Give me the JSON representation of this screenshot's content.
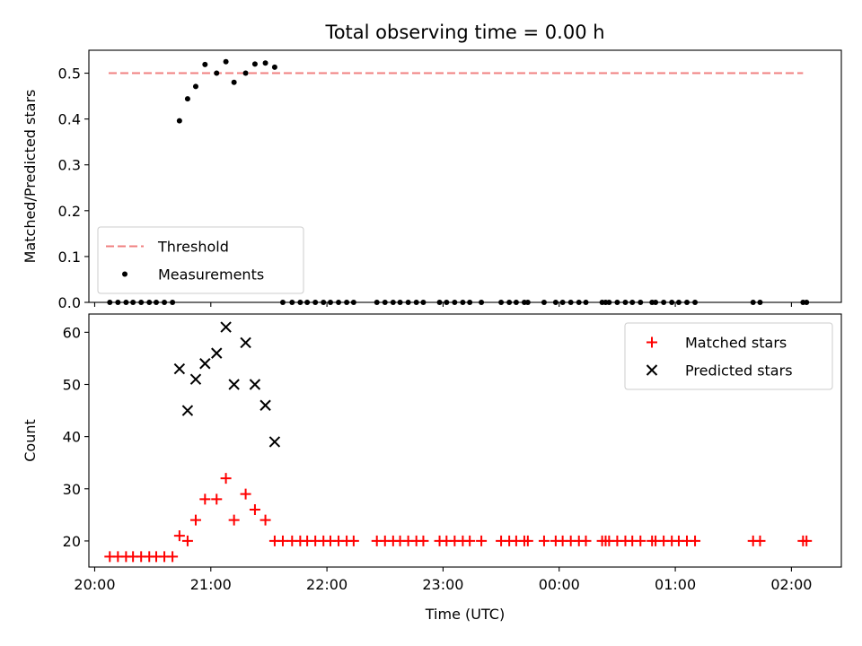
{
  "figure": {
    "title": "Total observing time = 0.00 h"
  },
  "chart_data": [
    {
      "type": "scatter",
      "panel": "top",
      "ylabel": "Matched/Predicted stars",
      "ylim": [
        0,
        0.55
      ],
      "yticks": [
        0.0,
        0.1,
        0.2,
        0.3,
        0.4,
        0.5
      ],
      "ytick_labels": [
        "0.0",
        "0.1",
        "0.2",
        "0.3",
        "0.4",
        "0.5"
      ],
      "xlim_hours": [
        19.95,
        26.43
      ],
      "threshold": {
        "value": 0.5,
        "x_range": [
          20.12,
          26.1
        ],
        "color": "#f08080",
        "style": "dashed"
      },
      "legend": {
        "placement": "lower-left",
        "entries": [
          {
            "label": "Threshold",
            "kind": "dashed-line",
            "color": "#f08080"
          },
          {
            "label": "Measurements",
            "kind": "dot",
            "color": "#000000"
          }
        ]
      },
      "series": [
        {
          "name": "Measurements",
          "marker": "dot",
          "color": "#000000",
          "x": [
            20.13,
            20.2,
            20.27,
            20.33,
            20.4,
            20.47,
            20.53,
            20.6,
            20.67,
            20.73,
            20.8,
            20.87,
            20.95,
            21.05,
            21.13,
            21.2,
            21.3,
            21.38,
            21.47,
            21.55,
            21.62,
            21.7,
            21.77,
            21.83,
            21.9,
            21.97,
            22.03,
            22.1,
            22.17,
            22.23,
            22.43,
            22.5,
            22.57,
            22.63,
            22.7,
            22.77,
            22.83,
            22.97,
            23.03,
            23.1,
            23.17,
            23.23,
            23.33,
            23.5,
            23.57,
            23.63,
            23.7,
            23.73,
            23.87,
            23.97,
            24.03,
            24.1,
            24.17,
            24.23,
            24.37,
            24.4,
            24.43,
            24.5,
            24.57,
            24.63,
            24.7,
            24.8,
            24.83,
            24.9,
            24.97,
            25.03,
            25.1,
            25.17,
            25.67,
            25.73,
            26.1,
            26.13
          ],
          "y": [
            0,
            0,
            0,
            0,
            0,
            0,
            0,
            0,
            0,
            0.396,
            0.444,
            0.471,
            0.519,
            0.5,
            0.525,
            0.48,
            0.5,
            0.52,
            0.522,
            0.513,
            0,
            0,
            0,
            0,
            0,
            0,
            0,
            0,
            0,
            0,
            0,
            0,
            0,
            0,
            0,
            0,
            0,
            0,
            0,
            0,
            0,
            0,
            0,
            0,
            0,
            0,
            0,
            0,
            0,
            0,
            0,
            0,
            0,
            0,
            0,
            0,
            0,
            0,
            0,
            0,
            0,
            0,
            0,
            0,
            0,
            0,
            0,
            0,
            0,
            0,
            0,
            0
          ]
        }
      ]
    },
    {
      "type": "scatter",
      "panel": "bottom",
      "xlabel": "Time (UTC)",
      "ylabel": "Count",
      "ylim": [
        15,
        63.5
      ],
      "yticks": [
        20,
        30,
        40,
        50,
        60
      ],
      "ytick_labels": [
        "20",
        "30",
        "40",
        "50",
        "60"
      ],
      "xlim_hours": [
        19.95,
        26.43
      ],
      "xticks_hours": [
        20,
        21,
        22,
        23,
        24,
        25,
        26
      ],
      "xtick_labels": [
        "20:00",
        "21:00",
        "22:00",
        "23:00",
        "00:00",
        "01:00",
        "02:00"
      ],
      "legend": {
        "placement": "upper-right",
        "entries": [
          {
            "label": "Matched stars",
            "kind": "plus",
            "color": "#ff0000"
          },
          {
            "label": "Predicted stars",
            "kind": "cross",
            "color": "#000000"
          }
        ]
      },
      "series": [
        {
          "name": "Matched stars",
          "marker": "plus",
          "color": "#ff0000",
          "x": [
            20.13,
            20.2,
            20.27,
            20.33,
            20.4,
            20.47,
            20.53,
            20.6,
            20.67,
            20.73,
            20.8,
            20.87,
            20.95,
            21.05,
            21.13,
            21.2,
            21.3,
            21.38,
            21.47,
            21.55,
            21.62,
            21.7,
            21.77,
            21.83,
            21.9,
            21.97,
            22.03,
            22.1,
            22.17,
            22.23,
            22.43,
            22.5,
            22.57,
            22.63,
            22.7,
            22.77,
            22.83,
            22.97,
            23.03,
            23.1,
            23.17,
            23.23,
            23.33,
            23.5,
            23.57,
            23.63,
            23.7,
            23.73,
            23.87,
            23.97,
            24.03,
            24.1,
            24.17,
            24.23,
            24.37,
            24.4,
            24.43,
            24.5,
            24.57,
            24.63,
            24.7,
            24.8,
            24.83,
            24.9,
            24.97,
            25.03,
            25.1,
            25.17,
            25.67,
            25.73,
            26.1,
            26.13
          ],
          "y": [
            17,
            17,
            17,
            17,
            17,
            17,
            17,
            17,
            17,
            21,
            20,
            24,
            28,
            28,
            32,
            24,
            29,
            26,
            24,
            20,
            20,
            20,
            20,
            20,
            20,
            20,
            20,
            20,
            20,
            20,
            20,
            20,
            20,
            20,
            20,
            20,
            20,
            20,
            20,
            20,
            20,
            20,
            20,
            20,
            20,
            20,
            20,
            20,
            20,
            20,
            20,
            20,
            20,
            20,
            20,
            20,
            20,
            20,
            20,
            20,
            20,
            20,
            20,
            20,
            20,
            20,
            20,
            20,
            20,
            20,
            20,
            20
          ]
        },
        {
          "name": "Predicted stars",
          "marker": "cross",
          "color": "#000000",
          "x": [
            20.73,
            20.8,
            20.87,
            20.95,
            21.05,
            21.13,
            21.2,
            21.3,
            21.38,
            21.47,
            21.55
          ],
          "y": [
            53,
            45,
            51,
            54,
            56,
            61,
            50,
            58,
            50,
            46,
            39
          ]
        }
      ]
    }
  ]
}
